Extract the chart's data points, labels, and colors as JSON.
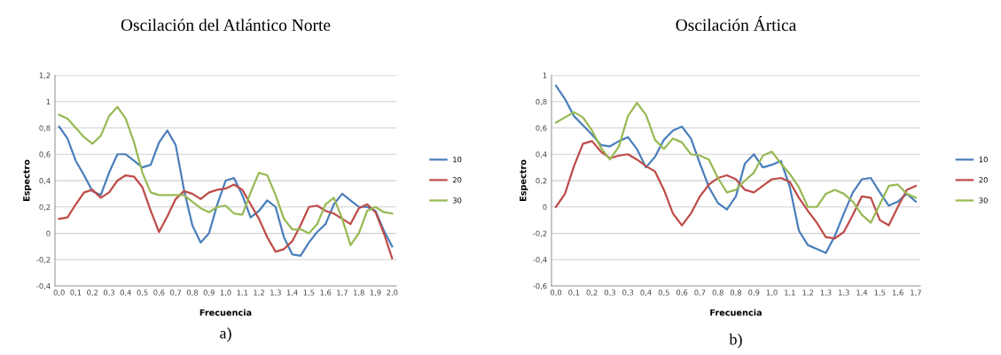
{
  "chart_data": [
    {
      "type": "line",
      "title": "Oscilación del Atlántico Norte",
      "xlabel": "Frecuencia",
      "ylabel": "Espectro",
      "annotations": [
        "a)"
      ],
      "categories": [
        "0,0",
        null,
        "0,1",
        null,
        "0,2",
        null,
        "0,3",
        null,
        "0,4",
        null,
        "0,5",
        null,
        "0,6",
        null,
        "0,7",
        null,
        "0,8",
        null,
        "0,9",
        null,
        "1,0",
        null,
        "1,1",
        null,
        "1,2",
        null,
        "1,3",
        null,
        "1,4",
        null,
        "1,5",
        null,
        "1,6",
        null,
        "1,7",
        null,
        "1,8",
        null,
        "1,9",
        null,
        "2,0"
      ],
      "series": [
        {
          "name": "10",
          "color": "#4a7ebb",
          "values": [
            0.81,
            0.72,
            0.55,
            0.44,
            0.32,
            0.29,
            0.46,
            0.6,
            0.6,
            0.55,
            0.5,
            0.52,
            0.69,
            0.78,
            0.67,
            0.33,
            0.06,
            -0.07,
            0.0,
            0.22,
            0.4,
            0.42,
            0.29,
            0.12,
            0.17,
            0.25,
            0.2,
            -0.03,
            -0.16,
            -0.17,
            -0.07,
            0.01,
            0.07,
            0.22,
            0.3,
            0.25,
            0.2,
            0.2,
            0.17,
            0.02,
            -0.1
          ]
        },
        {
          "name": "20",
          "color": "#be4b48",
          "values": [
            0.11,
            0.12,
            0.22,
            0.31,
            0.33,
            0.27,
            0.31,
            0.4,
            0.44,
            0.43,
            0.35,
            0.17,
            0.01,
            0.13,
            0.26,
            0.32,
            0.3,
            0.26,
            0.31,
            0.33,
            0.34,
            0.37,
            0.33,
            0.22,
            0.11,
            -0.03,
            -0.14,
            -0.12,
            -0.06,
            0.06,
            0.2,
            0.21,
            0.17,
            0.15,
            0.11,
            0.07,
            0.19,
            0.22,
            0.16,
            0.0,
            -0.19
          ]
        },
        {
          "name": "30",
          "color": "#98b954",
          "values": [
            0.9,
            0.87,
            0.8,
            0.73,
            0.68,
            0.74,
            0.89,
            0.96,
            0.87,
            0.69,
            0.46,
            0.31,
            0.29,
            0.29,
            0.29,
            0.29,
            0.24,
            0.19,
            0.16,
            0.2,
            0.21,
            0.15,
            0.14,
            0.31,
            0.46,
            0.44,
            0.29,
            0.11,
            0.03,
            0.03,
            0.0,
            0.07,
            0.22,
            0.27,
            0.11,
            -0.09,
            0.0,
            0.17,
            0.2,
            0.16,
            0.15
          ]
        }
      ],
      "ylim": [
        -0.4,
        1.2
      ],
      "yticks": [
        {
          "value": -0.4,
          "label": "-0,4"
        },
        {
          "value": -0.2,
          "label": "-0,2"
        },
        0,
        {
          "value": 0.2,
          "label": "0,2"
        },
        {
          "value": 0.4,
          "label": "0,4"
        },
        {
          "value": 0.6,
          "label": "0,6"
        },
        {
          "value": 0.8,
          "label": "0,8"
        },
        1,
        {
          "value": 1.2,
          "label": "1,2"
        }
      ],
      "grid": "y",
      "legend": "right",
      "marker": "none",
      "line_style": "solid"
    },
    {
      "type": "line",
      "title": "Oscilación Ártica",
      "xlabel": "Frecuencia",
      "ylabel": "Espectro",
      "annotations": [
        "b)"
      ],
      "categories": [
        "0,0",
        null,
        "0,1",
        null,
        "0,2",
        null,
        "0,3",
        null,
        "0,3",
        null,
        "0,4",
        null,
        "0,5",
        null,
        "0,6",
        null,
        "0,7",
        null,
        "0,8",
        null,
        "0,8",
        null,
        "0,9",
        null,
        "1,0",
        null,
        "1,1",
        null,
        "1,2",
        null,
        "1,3",
        null,
        "1,3",
        null,
        "1,4",
        null,
        "1,5",
        null,
        "1,6",
        null,
        "1,7"
      ],
      "series": [
        {
          "name": "10",
          "color": "#4a7ebb",
          "values": [
            0.92,
            0.82,
            0.69,
            0.62,
            0.55,
            0.47,
            0.46,
            0.5,
            0.53,
            0.44,
            0.3,
            0.38,
            0.51,
            0.58,
            0.61,
            0.52,
            0.33,
            0.15,
            0.03,
            -0.02,
            0.08,
            0.33,
            0.4,
            0.3,
            0.32,
            0.35,
            0.15,
            -0.18,
            -0.29,
            -0.32,
            -0.35,
            -0.22,
            -0.05,
            0.11,
            0.21,
            0.22,
            0.11,
            0.01,
            0.04,
            0.1,
            0.04
          ]
        },
        {
          "name": "20",
          "color": "#be4b48",
          "values": [
            0.0,
            0.1,
            0.31,
            0.48,
            0.5,
            0.42,
            0.37,
            0.39,
            0.4,
            0.36,
            0.31,
            0.27,
            0.13,
            -0.05,
            -0.14,
            -0.05,
            0.08,
            0.17,
            0.22,
            0.24,
            0.21,
            0.13,
            0.11,
            0.16,
            0.21,
            0.22,
            0.19,
            0.07,
            -0.03,
            -0.12,
            -0.23,
            -0.24,
            -0.19,
            -0.06,
            0.08,
            0.07,
            -0.1,
            -0.14,
            0.0,
            0.13,
            0.16
          ]
        },
        {
          "name": "30",
          "color": "#98b954",
          "values": [
            0.64,
            0.68,
            0.72,
            0.68,
            0.58,
            0.45,
            0.36,
            0.46,
            0.69,
            0.79,
            0.7,
            0.51,
            0.44,
            0.52,
            0.49,
            0.4,
            0.39,
            0.36,
            0.22,
            0.11,
            0.13,
            0.2,
            0.26,
            0.39,
            0.42,
            0.33,
            0.25,
            0.15,
            0.0,
            0.0,
            0.1,
            0.13,
            0.1,
            0.04,
            -0.06,
            -0.12,
            0.02,
            0.16,
            0.17,
            0.1,
            0.07
          ]
        }
      ],
      "ylim": [
        -0.6,
        1
      ],
      "yticks": [
        {
          "value": -0.6,
          "label": "-0,6"
        },
        {
          "value": -0.4,
          "label": "-0,4"
        },
        {
          "value": -0.2,
          "label": "-0,2"
        },
        0,
        {
          "value": 0.2,
          "label": "0,2"
        },
        {
          "value": 0.4,
          "label": "0,4"
        },
        {
          "value": 0.6,
          "label": "0,6"
        },
        {
          "value": 0.8,
          "label": "0,8"
        },
        1
      ],
      "grid": "y",
      "legend": "right",
      "marker": "none",
      "line_style": "solid"
    }
  ]
}
